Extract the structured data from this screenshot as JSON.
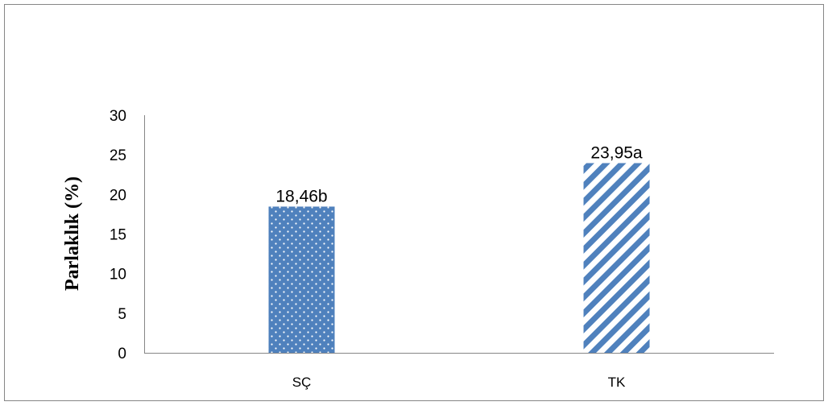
{
  "chart_data": {
    "type": "bar",
    "title": "",
    "xlabel": "",
    "ylabel": "Parlaklık  (%)",
    "ylim": [
      0,
      30
    ],
    "yticks": [
      0,
      5,
      10,
      15,
      20,
      25,
      30
    ],
    "grid": false,
    "legend": "none",
    "categories": [
      "SÇ",
      "TK"
    ],
    "values": [
      18.46,
      23.95
    ],
    "data_labels": [
      "18,46b",
      "23,95a"
    ],
    "bar_patterns": [
      "dotted",
      "diagonal-stripes"
    ],
    "colors": {
      "bar_fill": "#4f81bd",
      "pattern_light": "#ffffff",
      "axis": "#868686",
      "border": "#868686",
      "text": "#000000"
    }
  }
}
